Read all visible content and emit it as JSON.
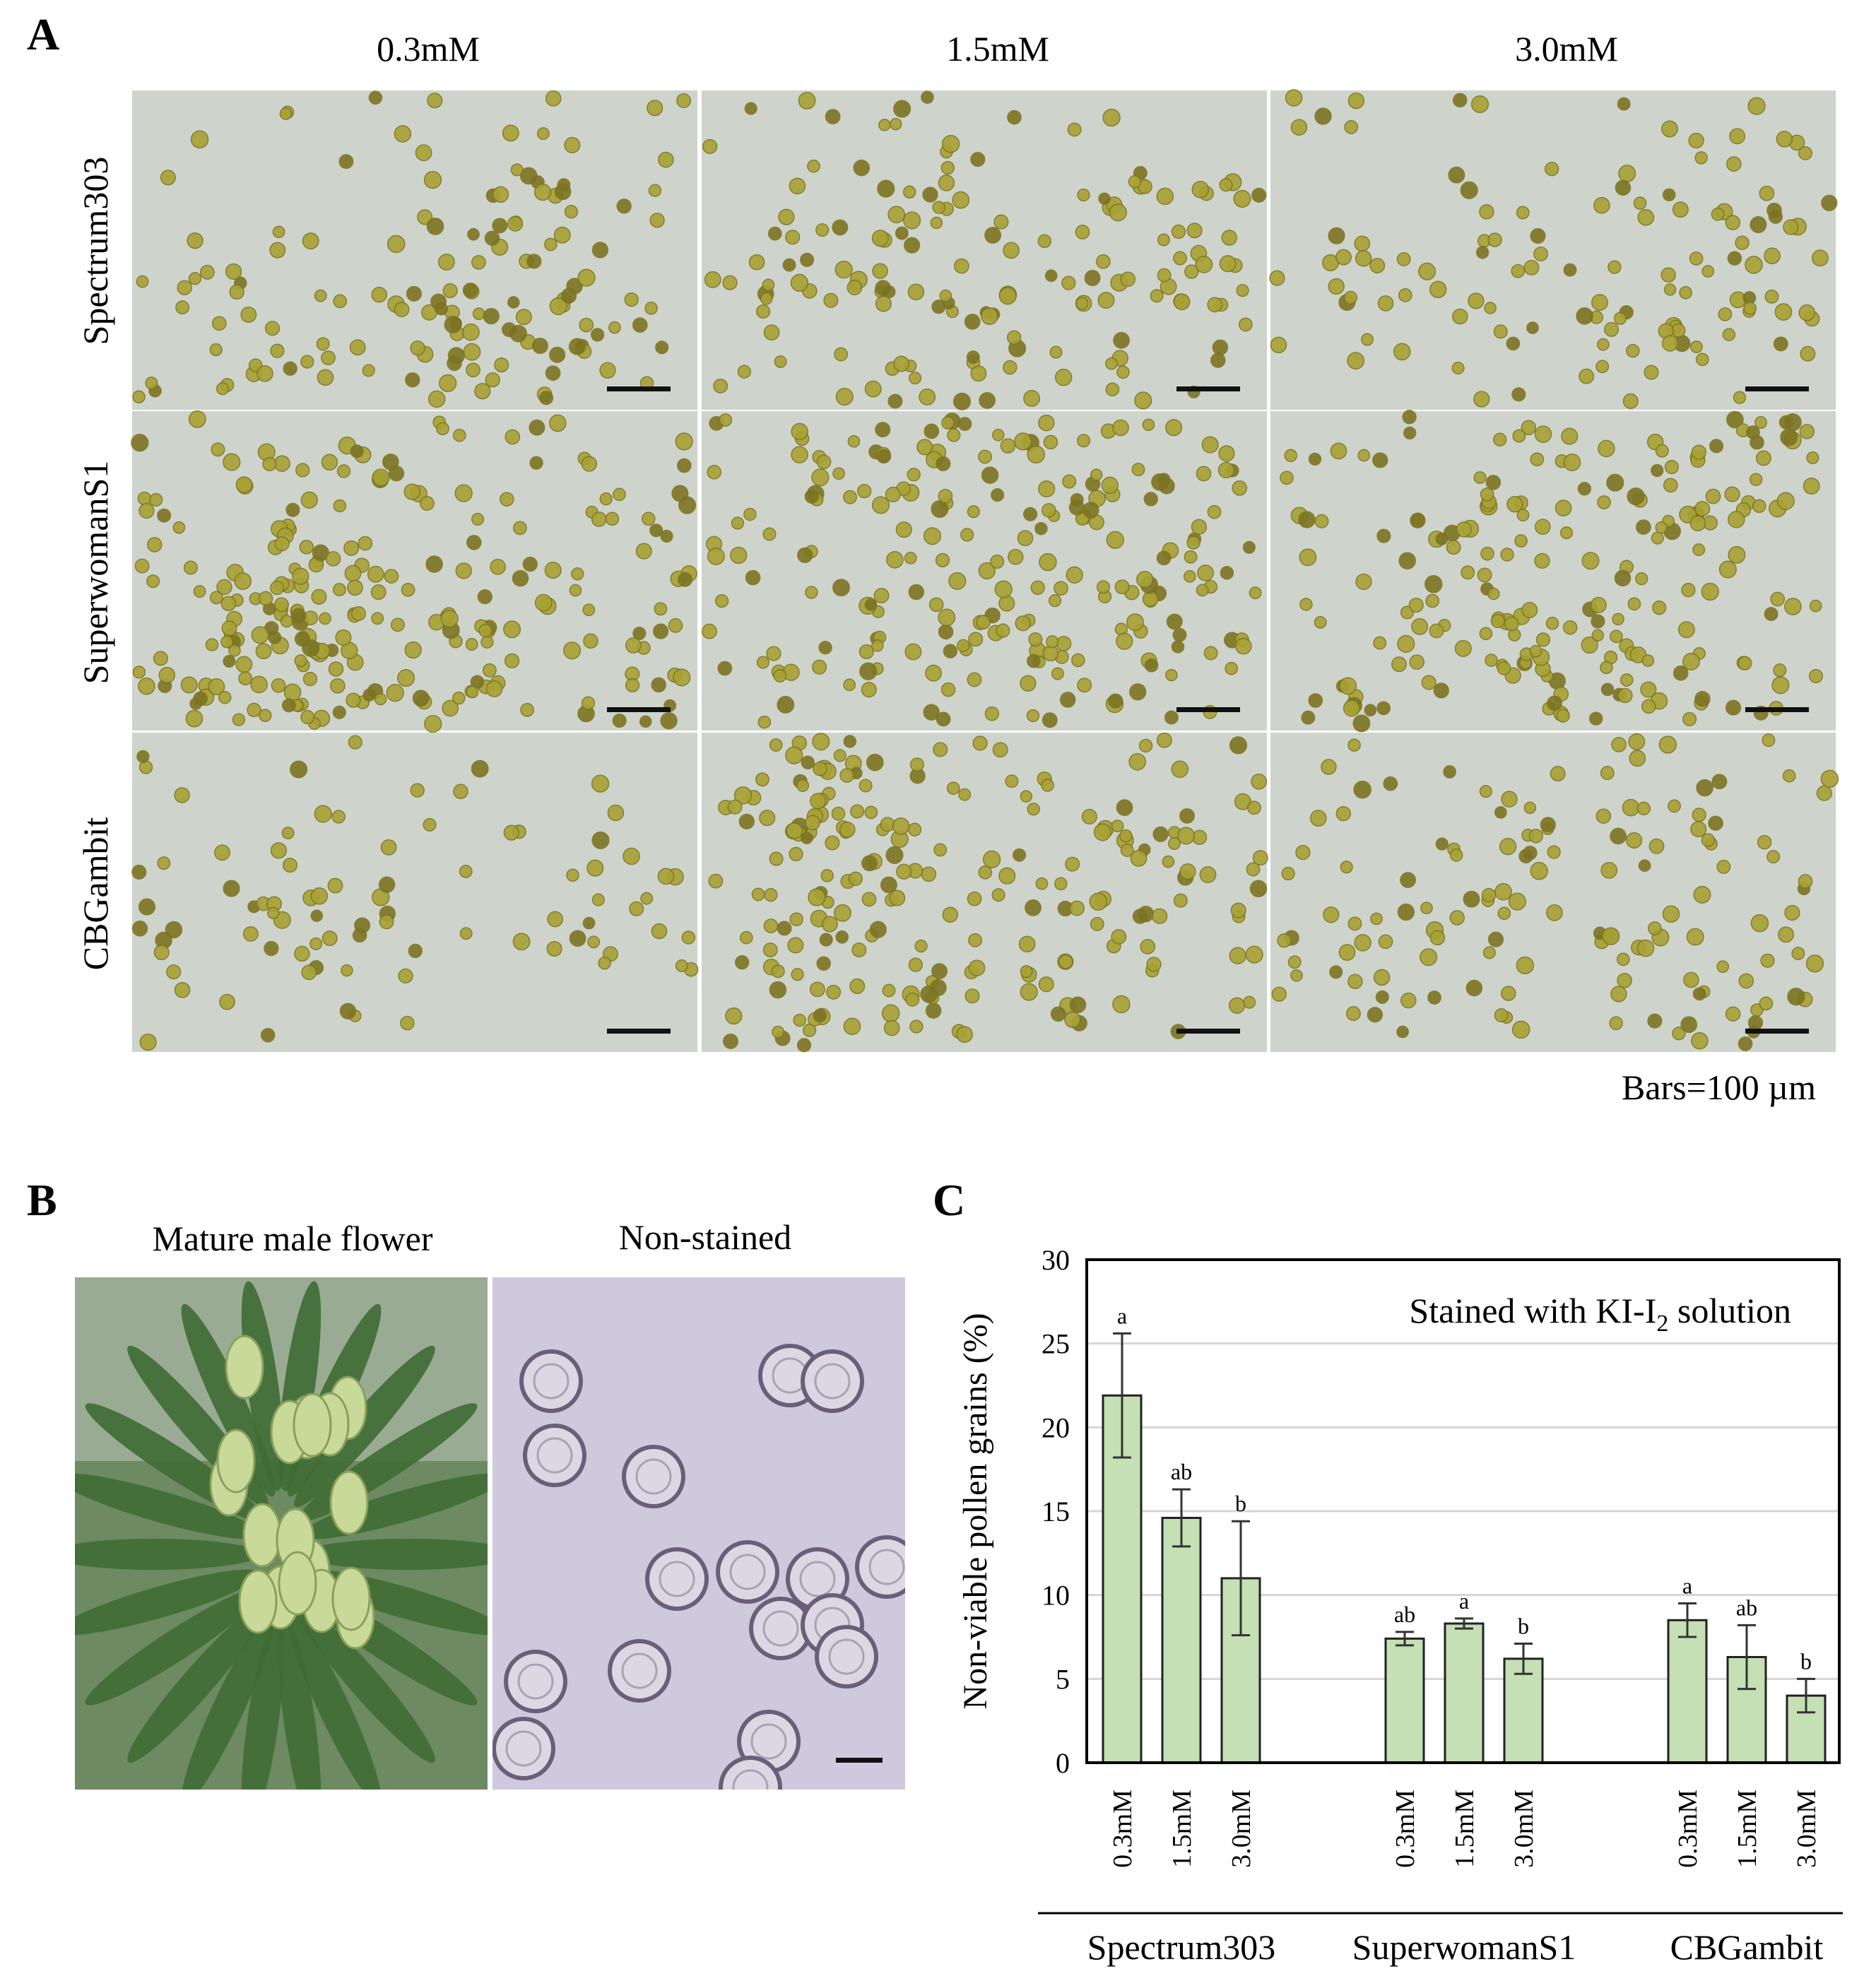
{
  "panel_a": {
    "letter": "A",
    "columns": [
      "0.3mM",
      "1.5mM",
      "3.0mM"
    ],
    "rows": [
      "Spectrum303",
      "SuperwomanS1",
      "CBGambit"
    ],
    "scale_note": "Bars=100 µm",
    "colors": {
      "background": "#ced3cc",
      "grain": "#a8a234",
      "grain_dark": "#7c7422",
      "scale_bar": "#111111"
    }
  },
  "panel_b": {
    "letter": "B",
    "labels": [
      "Mature male flower",
      "Non-stained"
    ],
    "colors": {
      "leaf": "#3f6b34",
      "bud": "#c9d99a",
      "pollen_bg": "#cfc9de",
      "pollen_ring": "#6a5f78"
    }
  },
  "chart_data": {
    "type": "bar",
    "panel_letter": "C",
    "title_prefix": "Stained with KI-I",
    "title_subscript": "2",
    "title_suffix": " solution",
    "ylabel": "Non-viable pollen grains  (%)",
    "ylim": [
      0,
      30
    ],
    "yticks": [
      0,
      5,
      10,
      15,
      20,
      25,
      30
    ],
    "grid": true,
    "bar_color": "#c5e0b4",
    "bar_stroke": "#222222",
    "groups": [
      {
        "name": "Spectrum303",
        "categories": [
          "0.3mM",
          "1.5mM",
          "3.0mM"
        ],
        "values": [
          21.9,
          14.6,
          11.0
        ],
        "errors": [
          3.7,
          1.7,
          3.4
        ],
        "letters": [
          "a",
          "ab",
          "b"
        ]
      },
      {
        "name": "SuperwomanS1",
        "categories": [
          "0.3mM",
          "1.5mM",
          "3.0mM"
        ],
        "values": [
          7.4,
          8.3,
          6.2
        ],
        "errors": [
          0.4,
          0.3,
          0.9
        ],
        "letters": [
          "ab",
          "a",
          "b"
        ]
      },
      {
        "name": "CBGambit",
        "categories": [
          "0.3mM",
          "1.5mM",
          "3.0mM"
        ],
        "values": [
          8.5,
          6.3,
          4.0
        ],
        "errors": [
          1.0,
          1.9,
          1.0
        ],
        "letters": [
          "a",
          "ab",
          "b"
        ]
      }
    ]
  }
}
